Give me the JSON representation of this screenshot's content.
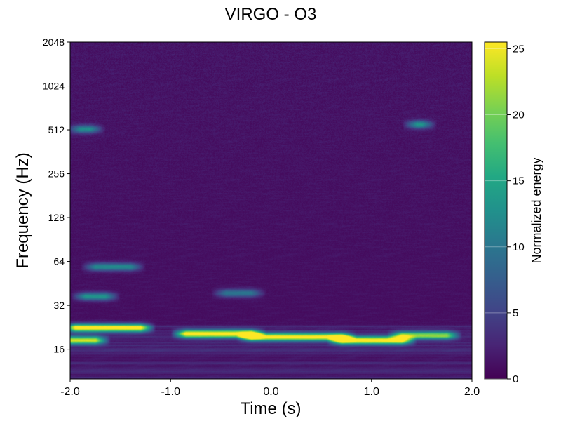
{
  "chart_data": {
    "type": "heatmap",
    "title": "VIRGO - O3",
    "xlabel": "Time (s)",
    "ylabel": "Frequency (Hz)",
    "xlim": [
      -2.0,
      2.0
    ],
    "ylim": [
      10,
      2048
    ],
    "y_scale": "log2",
    "x_ticks": [
      "-2.0",
      "-1.0",
      "0.0",
      "1.0",
      "2.0"
    ],
    "x_tick_values": [
      -2,
      -1,
      0,
      1,
      2
    ],
    "y_ticks": [
      "16",
      "32",
      "64",
      "128",
      "256",
      "512",
      "1024",
      "2048"
    ],
    "y_tick_values": [
      16,
      32,
      64,
      128,
      256,
      512,
      1024,
      2048
    ],
    "colormap": "viridis",
    "colorbar": {
      "label": "Normalized energy",
      "range": [
        0,
        25.5
      ],
      "ticks": [
        "0",
        "5",
        "10",
        "15",
        "20",
        "25"
      ],
      "tick_values": [
        0,
        5,
        10,
        15,
        20,
        25
      ]
    },
    "features": [
      {
        "t0": -1.95,
        "t1": -1.3,
        "f": 22.5,
        "energy": 25
      },
      {
        "t0": -2.0,
        "t1": -1.75,
        "f": 18.5,
        "energy": 22
      },
      {
        "t0": -0.85,
        "t1": -0.2,
        "f": 20.5,
        "energy": 25
      },
      {
        "t0": -0.2,
        "t1": 0.7,
        "f": 19.5,
        "energy": 24
      },
      {
        "t0": 0.7,
        "t1": 1.3,
        "f": 18.5,
        "energy": 25
      },
      {
        "t0": 1.3,
        "t1": 1.75,
        "f": 20,
        "energy": 19
      },
      {
        "t0": -1.75,
        "t1": -1.4,
        "f": 59,
        "energy": 11
      },
      {
        "t0": -1.85,
        "t1": -1.65,
        "f": 37,
        "energy": 12
      },
      {
        "t0": -0.45,
        "t1": -0.2,
        "f": 39,
        "energy": 9
      },
      {
        "t0": -1.9,
        "t1": -1.8,
        "f": 520,
        "energy": 11
      },
      {
        "t0": 1.45,
        "t1": 1.5,
        "f": 560,
        "energy": 12
      }
    ]
  }
}
